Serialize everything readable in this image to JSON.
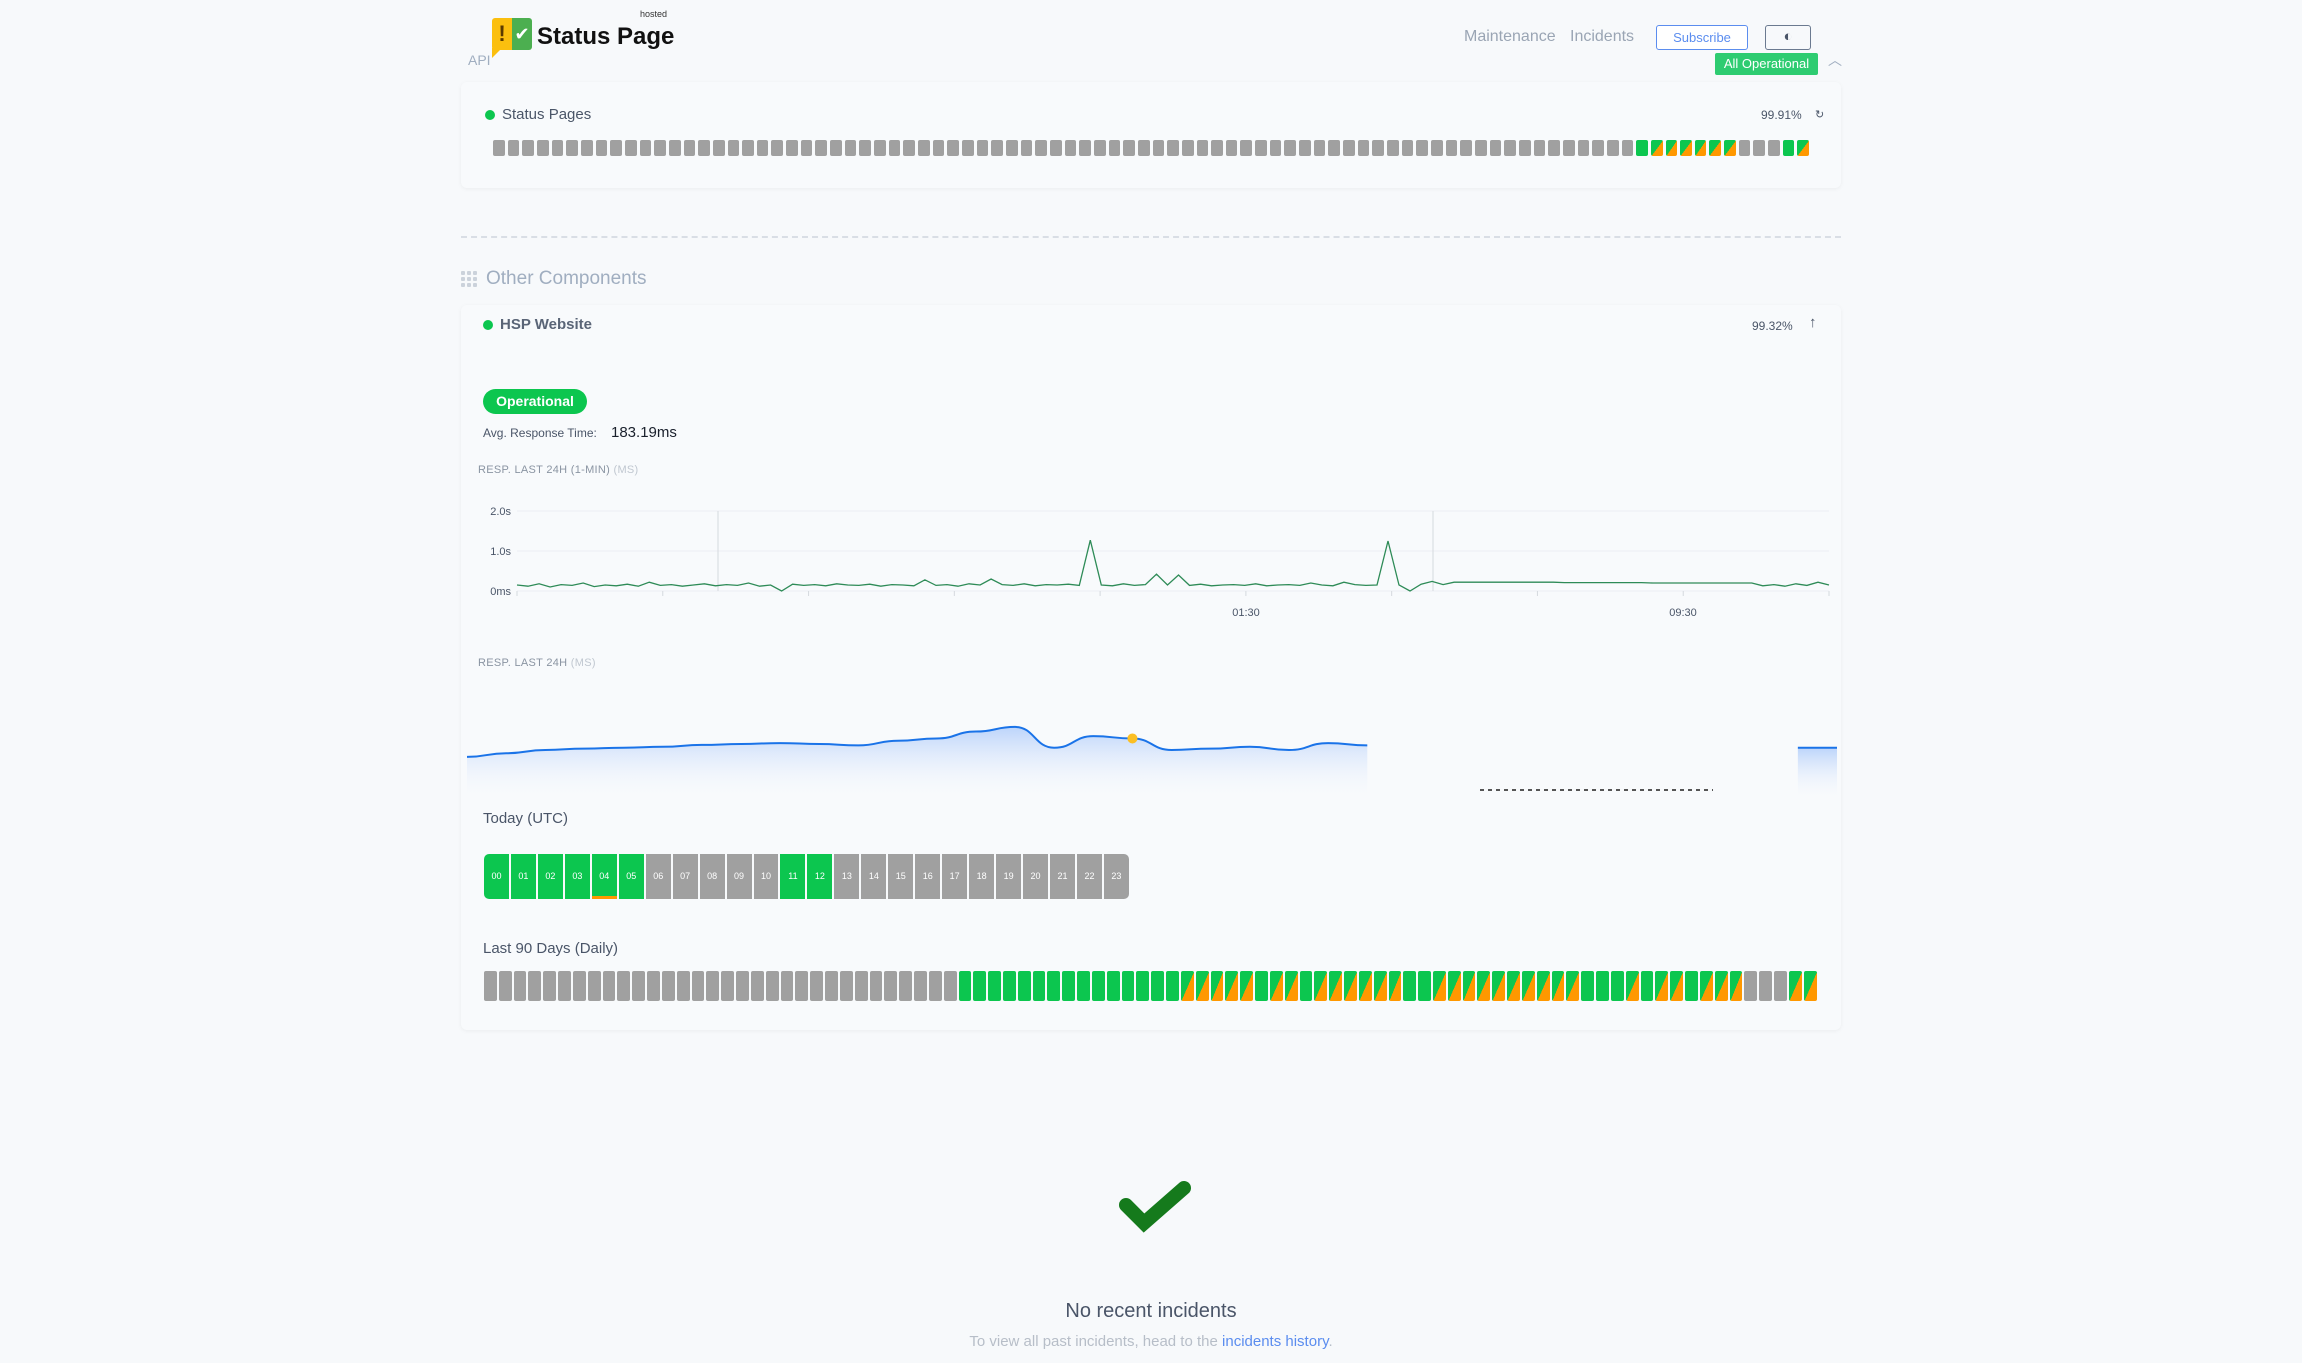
{
  "header": {
    "logo_text": "Status Page",
    "logo_hosted": "hosted",
    "api_label": "API",
    "nav": [
      "Maintenance",
      "Incidents"
    ],
    "subscribe_label": "Subscribe",
    "theme_toggle_icon": "half-circle-icon",
    "overall_status": "All Operational"
  },
  "colors": {
    "up": "#0cc64f",
    "partial": "#ff9800",
    "none": "#a0a0a0",
    "accent": "#5b8def",
    "response_line": "#2e8b57",
    "smooth_line": "#1a73e8",
    "marker": "#fbbf24"
  },
  "status_pages": {
    "label": "Status Pages",
    "uptime": "99.91%",
    "days": [
      "none",
      "none",
      "none",
      "none",
      "none",
      "none",
      "none",
      "none",
      "none",
      "none",
      "none",
      "none",
      "none",
      "none",
      "none",
      "none",
      "none",
      "none",
      "none",
      "none",
      "none",
      "none",
      "none",
      "none",
      "none",
      "none",
      "none",
      "none",
      "none",
      "none",
      "none",
      "none",
      "none",
      "none",
      "none",
      "none",
      "none",
      "none",
      "none",
      "none",
      "none",
      "none",
      "none",
      "none",
      "none",
      "none",
      "none",
      "none",
      "none",
      "none",
      "none",
      "none",
      "none",
      "none",
      "none",
      "none",
      "none",
      "none",
      "none",
      "none",
      "none",
      "none",
      "none",
      "none",
      "none",
      "none",
      "none",
      "none",
      "none",
      "none",
      "none",
      "none",
      "none",
      "none",
      "none",
      "none",
      "none",
      "none",
      "up",
      "partial",
      "partial",
      "partial",
      "partial",
      "partial",
      "partial",
      "none",
      "none",
      "none",
      "up",
      "partial"
    ]
  },
  "other_components": {
    "title": "Other Components"
  },
  "hsp": {
    "label": "HSP Website",
    "uptime": "99.32%",
    "status": "Operational",
    "avg_label": "Avg. Response Time:",
    "avg_value": "183.19ms",
    "chart1_label": "RESP. LAST 24H (1-MIN)",
    "chart1_unit": "(MS)",
    "chart2_label": "RESP. LAST 24H",
    "chart2_unit": "(MS)",
    "today_label": "Today (UTC)",
    "last90_label": "Last 90 Days (Daily)",
    "today": [
      {
        "h": "00",
        "s": "up"
      },
      {
        "h": "01",
        "s": "up"
      },
      {
        "h": "02",
        "s": "up"
      },
      {
        "h": "03",
        "s": "up"
      },
      {
        "h": "04",
        "s": "up",
        "minor": true
      },
      {
        "h": "05",
        "s": "up"
      },
      {
        "h": "06",
        "s": "none"
      },
      {
        "h": "07",
        "s": "none"
      },
      {
        "h": "08",
        "s": "none"
      },
      {
        "h": "09",
        "s": "none"
      },
      {
        "h": "10",
        "s": "none"
      },
      {
        "h": "11",
        "s": "up"
      },
      {
        "h": "12",
        "s": "up"
      },
      {
        "h": "13",
        "s": "none"
      },
      {
        "h": "14",
        "s": "none"
      },
      {
        "h": "15",
        "s": "none"
      },
      {
        "h": "16",
        "s": "none"
      },
      {
        "h": "17",
        "s": "none"
      },
      {
        "h": "18",
        "s": "none"
      },
      {
        "h": "19",
        "s": "none"
      },
      {
        "h": "20",
        "s": "none"
      },
      {
        "h": "21",
        "s": "none"
      },
      {
        "h": "22",
        "s": "none"
      },
      {
        "h": "23",
        "s": "none"
      }
    ],
    "days": [
      "none",
      "none",
      "none",
      "none",
      "none",
      "none",
      "none",
      "none",
      "none",
      "none",
      "none",
      "none",
      "none",
      "none",
      "none",
      "none",
      "none",
      "none",
      "none",
      "none",
      "none",
      "none",
      "none",
      "none",
      "none",
      "none",
      "none",
      "none",
      "none",
      "none",
      "none",
      "none",
      "up",
      "up",
      "up",
      "up",
      "up",
      "up",
      "up",
      "up",
      "up",
      "up",
      "up",
      "up",
      "up",
      "up",
      "up",
      "partial",
      "partial",
      "partial",
      "partial",
      "partial",
      "up",
      "partial",
      "partial",
      "up",
      "partial",
      "partial",
      "partial",
      "partial",
      "partial",
      "partial",
      "up",
      "up",
      "partial",
      "partial",
      "partial",
      "partial",
      "partial",
      "partial",
      "partial",
      "partial",
      "partial",
      "partial",
      "up",
      "up",
      "up",
      "partial",
      "up",
      "partial",
      "partial",
      "up",
      "partial",
      "partial",
      "partial",
      "none",
      "none",
      "none",
      "partial",
      "partial"
    ]
  },
  "chart_data": [
    {
      "type": "line",
      "title": "RESP. LAST 24H (1-MIN) (MS)",
      "y_ticks": [
        "0ms",
        "1.0s",
        "2.0s"
      ],
      "ylim": [
        0,
        2.0
      ],
      "x_ticks": [
        "01:30",
        "09:30"
      ],
      "grid": true,
      "values": [
        0.15,
        0.12,
        0.18,
        0.1,
        0.16,
        0.14,
        0.2,
        0.11,
        0.15,
        0.13,
        0.17,
        0.12,
        0.22,
        0.14,
        0.16,
        0.12,
        0.15,
        0.18,
        0.13,
        0.16,
        0.14,
        0.2,
        0.12,
        0.15,
        0.0,
        0.17,
        0.14,
        0.16,
        0.13,
        0.18,
        0.15,
        0.14,
        0.17,
        0.12,
        0.16,
        0.15,
        0.13,
        0.28,
        0.14,
        0.16,
        0.12,
        0.18,
        0.15,
        0.3,
        0.16,
        0.14,
        0.18,
        0.13,
        0.16,
        0.15,
        0.17,
        0.14,
        1.27,
        0.15,
        0.13,
        0.18,
        0.14,
        0.16,
        0.42,
        0.15,
        0.4,
        0.14,
        0.17,
        0.13,
        0.15,
        0.16,
        0.14,
        0.18,
        0.13,
        0.15,
        0.16,
        0.14,
        0.2,
        0.15,
        0.13,
        0.22,
        0.16,
        0.14,
        0.15,
        1.25,
        0.15,
        0.0,
        0.17,
        0.24,
        0.16,
        0.22,
        0.22,
        0.22,
        0.22,
        0.22,
        0.22,
        0.22,
        0.22,
        0.22,
        0.22,
        0.21,
        0.21,
        0.21,
        0.21,
        0.21,
        0.21,
        0.21,
        0.21,
        0.2,
        0.2,
        0.2,
        0.2,
        0.2,
        0.2,
        0.2,
        0.2,
        0.2,
        0.2,
        0.13,
        0.16,
        0.12,
        0.18,
        0.14,
        0.22,
        0.15
      ]
    },
    {
      "type": "area",
      "title": "RESP. LAST 24H (MS)",
      "values": [
        150,
        158,
        165,
        168,
        170,
        172,
        176,
        178,
        180,
        178,
        175,
        185,
        190,
        205,
        215,
        170,
        195,
        190,
        165,
        168,
        172,
        165,
        180,
        175,
        null,
        null,
        null,
        null,
        null,
        null,
        null,
        null,
        null,
        null,
        170,
        170
      ],
      "highlight_index": 17
    }
  ],
  "incidents": {
    "title": "No recent incidents",
    "hint_prefix": "To view all past incidents, head to the",
    "hint_link": "incidents history",
    "hint_suffix": "."
  }
}
